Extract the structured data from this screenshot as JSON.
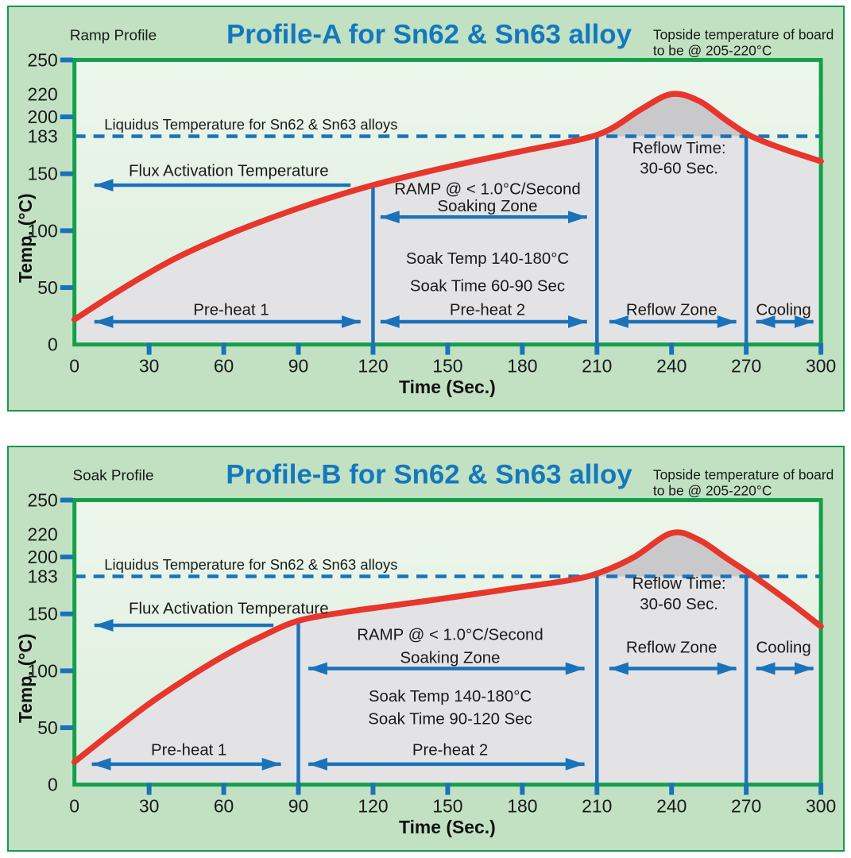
{
  "colors": {
    "panel_bg": "#c1e1c2",
    "panel_border": "#17964b",
    "plot_border": "#12a04c",
    "plot_bg_top": "#edf6ec",
    "plot_bg_bottom": "#ddeedd",
    "curve_fill": "#e3e3e5",
    "overheat_fill": "#c9c9cb",
    "curve_color": "#e8362c",
    "blue": "#1a72ba",
    "title_color": "#1478be",
    "text_color": "#1a1a1a"
  },
  "chart_data": [
    {
      "type": "line",
      "title": "Profile-A for Sn62 & Sn63 alloy",
      "subtitle": "Ramp Profile",
      "note_line1": "Topside temperature of board",
      "note_line2": "to be @ 205-220°C",
      "xlabel": "Time (Sec.)",
      "ylabel": "Temp. (°C)",
      "xlim": [
        0,
        300
      ],
      "ylim": [
        0,
        250
      ],
      "xticks": [
        0,
        30,
        60,
        90,
        120,
        150,
        180,
        210,
        240,
        270,
        300
      ],
      "yticks_labeled": [
        250,
        220,
        200,
        183,
        150,
        100,
        50,
        0
      ],
      "yticks_dashes": [
        250,
        200,
        150,
        100,
        50
      ],
      "liquidus": {
        "temp": 183
      },
      "zones": {
        "preheat1": [
          0,
          120
        ],
        "preheat2": [
          120,
          210
        ],
        "reflow": [
          210,
          270
        ],
        "cooling": [
          270,
          300
        ]
      },
      "zone_lines": [
        {
          "x": 120,
          "top": 140
        },
        {
          "x": 210,
          "top": 184
        },
        {
          "x": 270,
          "top": 183
        }
      ],
      "series": [
        {
          "name": "temperature",
          "points": [
            [
              0,
              22
            ],
            [
              20,
              50
            ],
            [
              40,
              75
            ],
            [
              60,
              95
            ],
            [
              80,
              112
            ],
            [
              100,
              127
            ],
            [
              120,
              140
            ],
            [
              150,
              156
            ],
            [
              180,
              170
            ],
            [
              205,
              181
            ],
            [
              216,
              190
            ],
            [
              228,
              207
            ],
            [
              240,
              220
            ],
            [
              251,
              214
            ],
            [
              262,
              197
            ],
            [
              272,
              183
            ],
            [
              286,
              171
            ],
            [
              300,
              161
            ]
          ]
        }
      ],
      "annotations": [
        {
          "text": "Liquidus Temperature for Sn62 & Sn63 alloys",
          "t": 12,
          "temp": 189,
          "anchor": "start",
          "size": 18.5
        },
        {
          "text": "Flux Activation Temperature",
          "t": 62,
          "temp": 148,
          "anchor": "middle",
          "size": 20.5
        },
        {
          "text": "RAMP @ < 1.0°C/Second",
          "t": 166,
          "temp": 132,
          "anchor": "middle",
          "size": 20.5
        },
        {
          "text": "Soaking Zone",
          "t": 166,
          "temp": 117,
          "anchor": "middle",
          "size": 20.5
        },
        {
          "text": "Soak Temp 140-180°C",
          "t": 166,
          "temp": 71,
          "anchor": "middle",
          "size": 20.5
        },
        {
          "text": "Soak Time 60-90 Sec",
          "t": 166,
          "temp": 47,
          "anchor": "middle",
          "size": 20.5
        },
        {
          "text": "Pre-heat 2",
          "t": 166,
          "temp": 26,
          "anchor": "middle",
          "size": 20.5
        },
        {
          "text": "Pre-heat 1",
          "t": 63,
          "temp": 26,
          "anchor": "middle",
          "size": 20.5
        },
        {
          "text": "Reflow Time:",
          "t": 243,
          "temp": 168,
          "anchor": "middle",
          "size": 20.5
        },
        {
          "text": "30-60 Sec.",
          "t": 243,
          "temp": 150,
          "anchor": "middle",
          "size": 20.5
        },
        {
          "text": "Reflow Zone",
          "t": 240,
          "temp": 26,
          "anchor": "middle",
          "size": 20.5
        },
        {
          "text": "Cooling",
          "t": 285,
          "temp": 26,
          "anchor": "middle",
          "size": 20.5
        }
      ],
      "arrows": [
        {
          "t1": 8,
          "t2": 111,
          "temp": 140,
          "heads": "left"
        },
        {
          "t1": 123,
          "t2": 206,
          "temp": 112,
          "heads": "both"
        },
        {
          "t1": 8,
          "t2": 115,
          "temp": 20,
          "heads": "both"
        },
        {
          "t1": 123,
          "t2": 206,
          "temp": 20,
          "heads": "both"
        },
        {
          "t1": 215,
          "t2": 266,
          "temp": 20,
          "heads": "both"
        },
        {
          "t1": 274,
          "t2": 297,
          "temp": 20,
          "heads": "both"
        }
      ]
    },
    {
      "type": "line",
      "title": "Profile-B for Sn62 & Sn63 alloy",
      "subtitle": "Soak Profile",
      "note_line1": "Topside temperature of board",
      "note_line2": "to be @ 205-220°C",
      "xlabel": "Time (Sec.)",
      "ylabel": "Temp. (°C)",
      "xlim": [
        0,
        300
      ],
      "ylim": [
        0,
        250
      ],
      "xticks": [
        0,
        30,
        60,
        90,
        120,
        150,
        180,
        210,
        240,
        270,
        300
      ],
      "yticks_labeled": [
        250,
        220,
        200,
        183,
        150,
        100,
        50,
        0
      ],
      "yticks_dashes": [
        250,
        200,
        150,
        100,
        50
      ],
      "liquidus": {
        "temp": 183
      },
      "zones": {
        "preheat1": [
          0,
          90
        ],
        "preheat2": [
          90,
          210
        ],
        "reflow": [
          210,
          270
        ],
        "cooling": [
          270,
          300
        ]
      },
      "zone_lines": [
        {
          "x": 90,
          "top": 144
        },
        {
          "x": 210,
          "top": 184
        },
        {
          "x": 270,
          "top": 183
        }
      ],
      "series": [
        {
          "name": "temperature",
          "points": [
            [
              0,
              20
            ],
            [
              15,
              46
            ],
            [
              30,
              71
            ],
            [
              45,
              93
            ],
            [
              60,
              113
            ],
            [
              75,
              130
            ],
            [
              90,
              144
            ],
            [
              110,
              152
            ],
            [
              130,
              158
            ],
            [
              150,
              164
            ],
            [
              175,
              172
            ],
            [
              200,
              180
            ],
            [
              212,
              187
            ],
            [
              225,
              200
            ],
            [
              240,
              221
            ],
            [
              251,
              215
            ],
            [
              262,
              199
            ],
            [
              273,
              183
            ],
            [
              287,
              161
            ],
            [
              300,
              139
            ]
          ]
        }
      ],
      "annotations": [
        {
          "text": "Liquidus Temperature for Sn62 & Sn63 alloys",
          "t": 12,
          "temp": 189,
          "anchor": "start",
          "size": 18.5
        },
        {
          "text": "Flux Activation Temperature",
          "t": 62,
          "temp": 150,
          "anchor": "middle",
          "size": 20.5
        },
        {
          "text": "RAMP @ < 1.0°C/Second",
          "t": 151,
          "temp": 127,
          "anchor": "middle",
          "size": 20.5
        },
        {
          "text": "Soaking Zone",
          "t": 151,
          "temp": 107,
          "anchor": "middle",
          "size": 20.5
        },
        {
          "text": "Soak Temp 140-180°C",
          "t": 151,
          "temp": 73,
          "anchor": "middle",
          "size": 20.5
        },
        {
          "text": "Soak Time 90-120 Sec",
          "t": 151,
          "temp": 53,
          "anchor": "middle",
          "size": 20.5
        },
        {
          "text": "Pre-heat 2",
          "t": 151,
          "temp": 26,
          "anchor": "middle",
          "size": 20.5
        },
        {
          "text": "Pre-heat 1",
          "t": 46,
          "temp": 26,
          "anchor": "middle",
          "size": 20.5
        },
        {
          "text": "Reflow Time:",
          "t": 243,
          "temp": 172,
          "anchor": "middle",
          "size": 20.5
        },
        {
          "text": "30-60 Sec.",
          "t": 243,
          "temp": 154,
          "anchor": "middle",
          "size": 20.5
        },
        {
          "text": "Reflow Zone",
          "t": 240,
          "temp": 116,
          "anchor": "middle",
          "size": 20.5
        },
        {
          "text": "Cooling",
          "t": 285,
          "temp": 116,
          "anchor": "middle",
          "size": 20.5
        }
      ],
      "arrows": [
        {
          "t1": 8,
          "t2": 80,
          "temp": 140,
          "heads": "left"
        },
        {
          "t1": 94,
          "t2": 205,
          "temp": 102,
          "heads": "both"
        },
        {
          "t1": 7,
          "t2": 83,
          "temp": 18,
          "heads": "both"
        },
        {
          "t1": 94,
          "t2": 205,
          "temp": 18,
          "heads": "both"
        },
        {
          "t1": 215,
          "t2": 266,
          "temp": 102,
          "heads": "both"
        },
        {
          "t1": 274,
          "t2": 297,
          "temp": 102,
          "heads": "both"
        }
      ]
    }
  ]
}
